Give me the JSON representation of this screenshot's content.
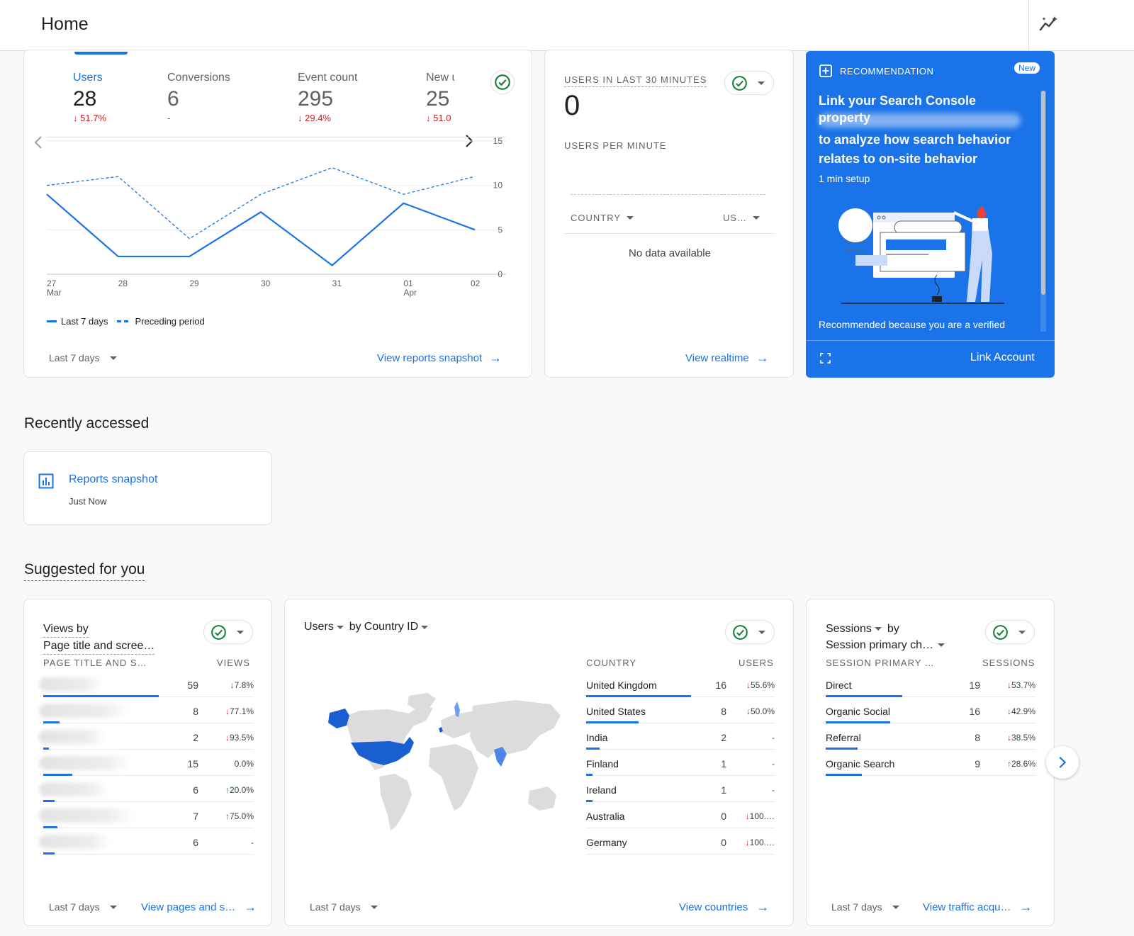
{
  "header": {
    "title": "Home"
  },
  "overview": {
    "tabs": [
      {
        "label": "Users",
        "value": "28",
        "change": "51.7%",
        "dir": "down"
      },
      {
        "label": "Conversions",
        "value": "6",
        "change": "-",
        "dir": "none"
      },
      {
        "label": "Event count",
        "value": "295",
        "change": "29.4%",
        "dir": "down"
      },
      {
        "label": "New u",
        "value": "25",
        "change": "51.0",
        "dir": "down"
      }
    ],
    "legend_current": "Last 7 days",
    "legend_previous": "Preceding period",
    "date_range": "Last 7 days",
    "cta": "View reports snapshot"
  },
  "chart_data": {
    "type": "line",
    "x": [
      "27 Mar",
      "28",
      "29",
      "30",
      "31",
      "01 Apr",
      "02"
    ],
    "x_tick_top": [
      "27",
      "28",
      "29",
      "30",
      "31",
      "01",
      "02"
    ],
    "x_tick_bottom": [
      "Mar",
      "",
      "",
      "",
      "",
      "Apr",
      ""
    ],
    "y_ticks": [
      "0",
      "5",
      "10",
      "15"
    ],
    "ylim": [
      0,
      15
    ],
    "grid": true,
    "series": [
      {
        "name": "Last 7 days",
        "values": [
          9,
          2,
          2,
          7,
          1,
          8,
          5
        ],
        "style": "solid"
      },
      {
        "name": "Preceding period",
        "values": [
          10,
          11,
          4,
          9,
          12,
          9,
          11
        ],
        "style": "dashed"
      }
    ]
  },
  "realtime": {
    "title": "USERS IN LAST 30 MINUTES",
    "value": "0",
    "per_minute": "USERS PER MINUTE",
    "col_country": "COUNTRY",
    "col_users": "US…",
    "empty": "No data available",
    "cta": "View realtime"
  },
  "recommendation": {
    "tag": "RECOMMENDATION",
    "badge": "New",
    "headline": "Link your Search Console property",
    "body": "to analyze how search behavior relates to on-site behavior",
    "setup": "1 min setup",
    "footer": "Recommended because you are a verified",
    "cta": "Link Account"
  },
  "recent": {
    "heading": "Recently accessed",
    "item_title": "Reports snapshot",
    "item_time": "Just Now"
  },
  "suggested": {
    "heading": "Suggested for you",
    "views_card": {
      "title_line1": "Views by",
      "title_line2": "Page title and scree…",
      "col1": "PAGE TITLE AND S…",
      "col2": "VIEWS",
      "rows": [
        {
          "value": "59",
          "change": "7.8%",
          "dir": "down",
          "bar": 1.0
        },
        {
          "value": "8",
          "change": "77.1%",
          "dir": "down",
          "bar": 0.14
        },
        {
          "value": "2",
          "change": "93.5%",
          "dir": "down",
          "bar": 0.03
        },
        {
          "value": "15",
          "change": "0.0%",
          "dir": "none",
          "bar": 0.25
        },
        {
          "value": "6",
          "change": "20.0%",
          "dir": "up",
          "bar": 0.1
        },
        {
          "value": "7",
          "change": "75.0%",
          "dir": "up",
          "bar": 0.12
        },
        {
          "value": "6",
          "change": "-",
          "dir": "none",
          "bar": 0.1
        }
      ],
      "date_range": "Last 7 days",
      "cta": "View pages and s…"
    },
    "country_card": {
      "title_metric": "Users",
      "title_by": "by",
      "title_dim": "Country ID",
      "col1": "COUNTRY",
      "col2": "USERS",
      "rows": [
        {
          "country": "United Kingdom",
          "value": "16",
          "change": "55.6%",
          "dir": "down",
          "bar": 1.0
        },
        {
          "country": "United States",
          "value": "8",
          "change": "50.0%",
          "dir": "down",
          "bar": 0.5
        },
        {
          "country": "India",
          "value": "2",
          "change": "-",
          "dir": "none",
          "bar": 0.13
        },
        {
          "country": "Finland",
          "value": "1",
          "change": "-",
          "dir": "none",
          "bar": 0.06
        },
        {
          "country": "Ireland",
          "value": "1",
          "change": "-",
          "dir": "none",
          "bar": 0.06
        },
        {
          "country": "Australia",
          "value": "0",
          "change": "100.…",
          "dir": "down",
          "bar": 0
        },
        {
          "country": "Germany",
          "value": "0",
          "change": "100.…",
          "dir": "down",
          "bar": 0
        }
      ],
      "date_range": "Last 7 days",
      "cta": "View countries"
    },
    "sessions_card": {
      "title_metric": "Sessions",
      "title_by": "by",
      "title_dim": "Session primary ch…",
      "col1": "SESSION PRIMARY …",
      "col2": "SESSIONS",
      "rows": [
        {
          "label": "Direct",
          "value": "19",
          "change": "53.7%",
          "dir": "down",
          "bar": 1.0
        },
        {
          "label": "Organic Social",
          "value": "16",
          "change": "42.9%",
          "dir": "down",
          "bar": 0.84
        },
        {
          "label": "Referral",
          "value": "8",
          "change": "38.5%",
          "dir": "down",
          "bar": 0.42
        },
        {
          "label": "Organic Search",
          "value": "9",
          "change": "28.6%",
          "dir": "up",
          "bar": 0.47
        }
      ],
      "date_range": "Last 7 days",
      "cta": "View traffic acqu…"
    }
  },
  "colors": {
    "accent": "#1a73e8",
    "down": "#c5221f",
    "up": "#137333",
    "reco_bg": "#1a73e8"
  }
}
